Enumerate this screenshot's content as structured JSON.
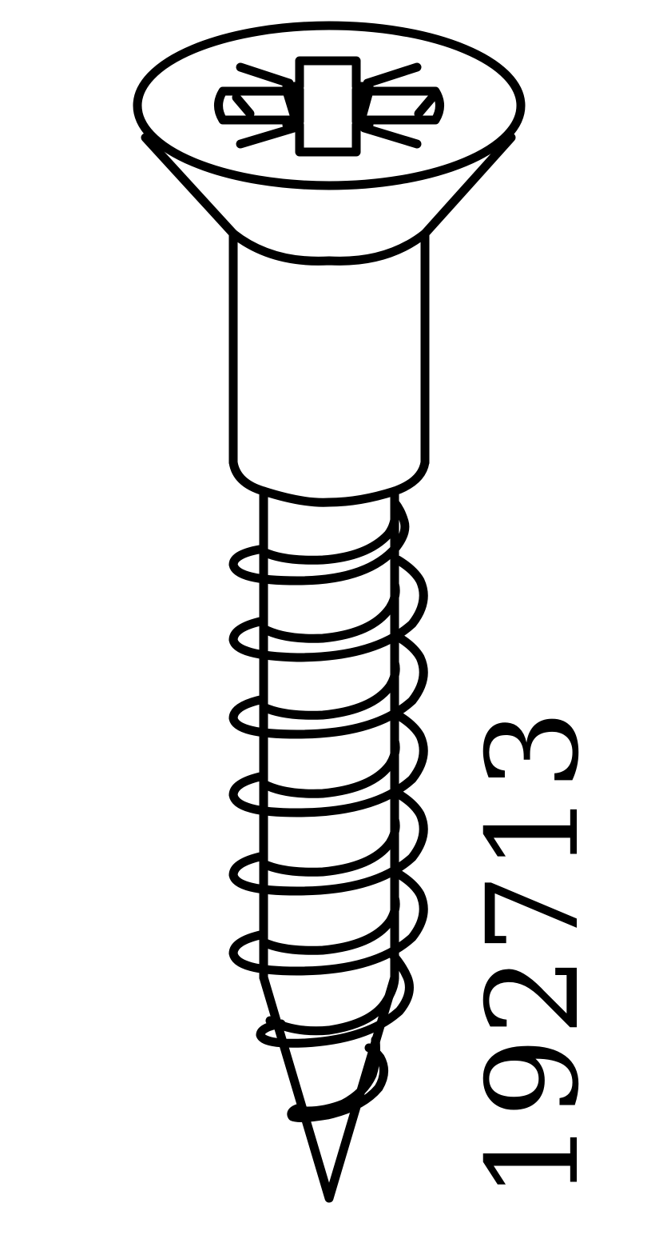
{
  "part_number": "192713",
  "illustration": {
    "subject": "countersunk-wood-screw",
    "drive_type": "pozidriv-cross",
    "line_color": "#000000",
    "background_color": "#ffffff"
  }
}
